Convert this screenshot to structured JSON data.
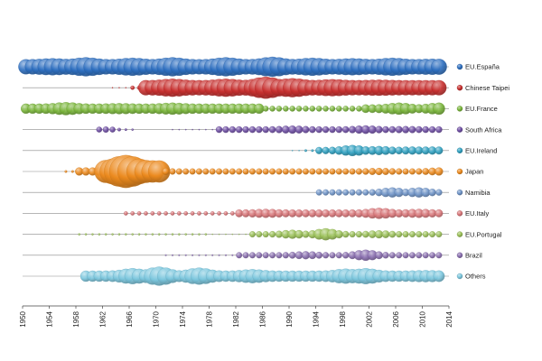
{
  "chart_data": {
    "type": "scatter",
    "subtype": "bubble-timeline",
    "title": "",
    "xlabel": "",
    "ylabel": "",
    "xlim": [
      1950,
      2014
    ],
    "x_ticks": [
      "1950",
      "1954",
      "1958",
      "1962",
      "1966",
      "1970",
      "1974",
      "1978",
      "1982",
      "1986",
      "1990",
      "1994",
      "1998",
      "2002",
      "2006",
      "2010",
      "2014"
    ],
    "legend_position": "right",
    "grid": false,
    "series": [
      {
        "name": "EU.España",
        "color": "#2e6fc0",
        "segments": [
          [
            1950,
            2012,
            0.75
          ]
        ],
        "peaks": [
          [
            1954,
            0.85
          ],
          [
            1959,
            0.95
          ],
          [
            1966,
            0.9
          ],
          [
            1972,
            0.95
          ],
          [
            1980,
            0.95
          ],
          [
            1987,
            1.0
          ],
          [
            1993,
            0.9
          ],
          [
            1999,
            0.85
          ],
          [
            2005,
            0.9
          ],
          [
            2011,
            0.8
          ]
        ]
      },
      {
        "name": "Chinese Taipei",
        "color": "#c8302f",
        "segments": [
          [
            1963,
            1965,
            0.05
          ],
          [
            1966,
            1967,
            0.2
          ],
          [
            1968,
            2012,
            0.75
          ]
        ],
        "peaks": [
          [
            1972,
            0.9
          ],
          [
            1980,
            0.9
          ],
          [
            1986,
            1.1
          ],
          [
            1990,
            0.95
          ],
          [
            1996,
            0.85
          ],
          [
            2003,
            0.8
          ],
          [
            2010,
            0.75
          ]
        ]
      },
      {
        "name": "EU.France",
        "color": "#7ab53b",
        "segments": [
          [
            1950,
            1985,
            0.5
          ],
          [
            1986,
            2000,
            0.28
          ],
          [
            2001,
            2012,
            0.42
          ]
        ],
        "peaks": [
          [
            1956,
            0.65
          ],
          [
            1964,
            0.55
          ],
          [
            1972,
            0.6
          ],
          [
            1980,
            0.5
          ],
          [
            2006,
            0.6
          ],
          [
            2012,
            0.6
          ]
        ]
      },
      {
        "name": "South Africa",
        "color": "#6e4ea3",
        "segments": [
          [
            1961,
            1963,
            0.22
          ],
          [
            1964,
            1966,
            0.1
          ],
          [
            1972,
            1978,
            0.05
          ],
          [
            1979,
            2012,
            0.32
          ]
        ],
        "peaks": [
          [
            1962,
            0.3
          ],
          [
            1990,
            0.4
          ],
          [
            2001,
            0.42
          ],
          [
            2007,
            0.35
          ]
        ]
      },
      {
        "name": "EU.Ireland",
        "color": "#2fa0c0",
        "segments": [
          [
            1990,
            1991,
            0.05
          ],
          [
            1992,
            1993,
            0.12
          ],
          [
            1994,
            2012,
            0.35
          ]
        ],
        "peaks": [
          [
            1999,
            0.55
          ],
          [
            2003,
            0.45
          ],
          [
            2008,
            0.4
          ],
          [
            2011,
            0.4
          ]
        ]
      },
      {
        "name": "Japan",
        "color": "#ec8a1e",
        "segments": [
          [
            1956,
            1957,
            0.12
          ],
          [
            1958,
            1961,
            0.4
          ],
          [
            1962,
            1970,
            1.1
          ],
          [
            1971,
            2012,
            0.3
          ]
        ],
        "peaks": [
          [
            1965,
            1.65
          ],
          [
            1968,
            1.1
          ],
          [
            2003,
            0.35
          ],
          [
            2012,
            0.4
          ]
        ]
      },
      {
        "name": "Namibia",
        "color": "#6f94c8",
        "segments": [
          [
            1994,
            2012,
            0.3
          ]
        ],
        "peaks": [
          [
            2005,
            0.5
          ],
          [
            2009,
            0.5
          ]
        ]
      },
      {
        "name": "EU.Italy",
        "color": "#d9777a",
        "segments": [
          [
            1965,
            1981,
            0.2
          ],
          [
            1982,
            2012,
            0.38
          ]
        ],
        "peaks": [
          [
            1986,
            0.45
          ],
          [
            2003,
            0.55
          ],
          [
            2009,
            0.45
          ]
        ]
      },
      {
        "name": "EU.Portugal",
        "color": "#9bc158",
        "segments": [
          [
            1958,
            1977,
            0.1
          ],
          [
            1978,
            1983,
            0.05
          ],
          [
            1984,
            2012,
            0.3
          ]
        ],
        "peaks": [
          [
            1990,
            0.45
          ],
          [
            1995,
            0.6
          ],
          [
            2003,
            0.4
          ]
        ]
      },
      {
        "name": "Brazil",
        "color": "#8a6fb0",
        "segments": [
          [
            1971,
            1981,
            0.08
          ],
          [
            1982,
            2012,
            0.3
          ]
        ],
        "peaks": [
          [
            1992,
            0.4
          ],
          [
            2001,
            0.55
          ]
        ]
      },
      {
        "name": "Others",
        "color": "#7cc7de",
        "segments": [
          [
            1959,
            2012,
            0.55
          ]
        ],
        "peaks": [
          [
            1966,
            0.8
          ],
          [
            1970,
            0.95
          ],
          [
            1976,
            0.85
          ],
          [
            1984,
            0.7
          ],
          [
            1998,
            0.75
          ],
          [
            2001,
            0.8
          ],
          [
            2010,
            0.6
          ]
        ]
      }
    ]
  }
}
